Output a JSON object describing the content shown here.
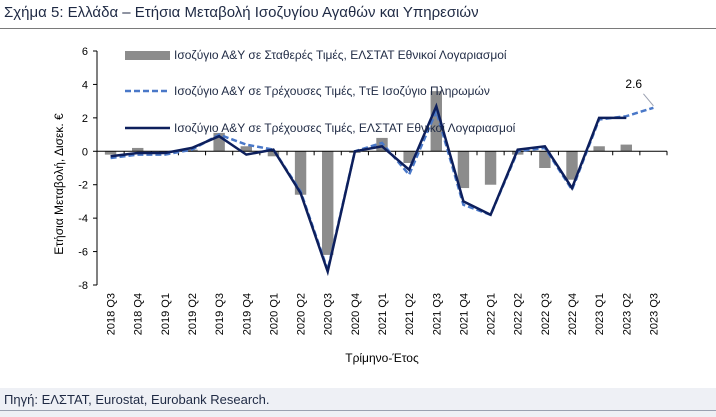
{
  "title": "Σχήμα 5: Ελλάδα – Ετήσια Μεταβολή Ισοζυγίου Αγαθών και Υπηρεσιών",
  "source": "Πηγή: ΕΛΣΤΑΤ, Eurostat, Eurobank Research.",
  "chart_data": {
    "type": "bar",
    "xlabel": "Τρίμηνο-Έτος",
    "ylabel": "Ετήσια Μεταβολή, Δισεκ. €",
    "ylim": [
      -8,
      6
    ],
    "yticks": [
      -8,
      -6,
      -4,
      -2,
      0,
      2,
      4,
      6
    ],
    "grid": false,
    "legend_position": "top-left",
    "categories": [
      "2018 Q3",
      "2018 Q4",
      "2019 Q1",
      "2019 Q2",
      "2019 Q3",
      "2019 Q4",
      "2020 Q1",
      "2020 Q2",
      "2020 Q3",
      "2020 Q4",
      "2021 Q1",
      "2021 Q2",
      "2021 Q3",
      "2021 Q4",
      "2022 Q1",
      "2022 Q2",
      "2022 Q3",
      "2022 Q4",
      "2023 Q1",
      "2023 Q2",
      "2023 Q3"
    ],
    "series": [
      {
        "name": "Ισοζύγιο Α&Υ σε Σταθερές Τιμές, ΕΛΣΤΑΤ Εθνικοί Λογαριασμοί",
        "kind": "bar",
        "color": "#8c8c8c",
        "values": [
          -0.2,
          0.2,
          -0.1,
          0.1,
          1.1,
          0.3,
          -0.3,
          -2.6,
          -6.2,
          -0.1,
          0.8,
          -0.7,
          3.6,
          -2.2,
          -2.0,
          -0.2,
          -1.0,
          -1.7,
          0.3,
          0.4,
          null
        ]
      },
      {
        "name": "Ισοζύγιο Α&Υ σε Τρέχουσες Τιμές, ΤτΕ Ισοζύγιο Πληρωμών",
        "kind": "dashed-line",
        "color": "#4a78c8",
        "values": [
          -0.4,
          -0.2,
          -0.2,
          0.1,
          1.0,
          0.4,
          0.1,
          -2.4,
          -7.1,
          0.0,
          0.5,
          -1.4,
          2.4,
          -3.2,
          -3.8,
          0.0,
          0.2,
          -2.3,
          1.9,
          2.1,
          2.6
        ]
      },
      {
        "name": "Ισοζύγιο Α&Υ σε Τρέχουσες Τιμές, ΕΛΣΤΑΤ Εθνικοί Λογαριασμοί",
        "kind": "line",
        "color": "#0d1f5c",
        "values": [
          -0.3,
          -0.1,
          -0.1,
          0.2,
          0.9,
          -0.2,
          0.1,
          -2.5,
          -7.2,
          0.0,
          0.3,
          -1.1,
          2.7,
          -3.0,
          -3.8,
          0.1,
          0.3,
          -2.2,
          2.0,
          2.0,
          null
        ]
      }
    ],
    "annotations": [
      {
        "text": "2.6",
        "category": "2023 Q3",
        "series": 1
      }
    ]
  }
}
